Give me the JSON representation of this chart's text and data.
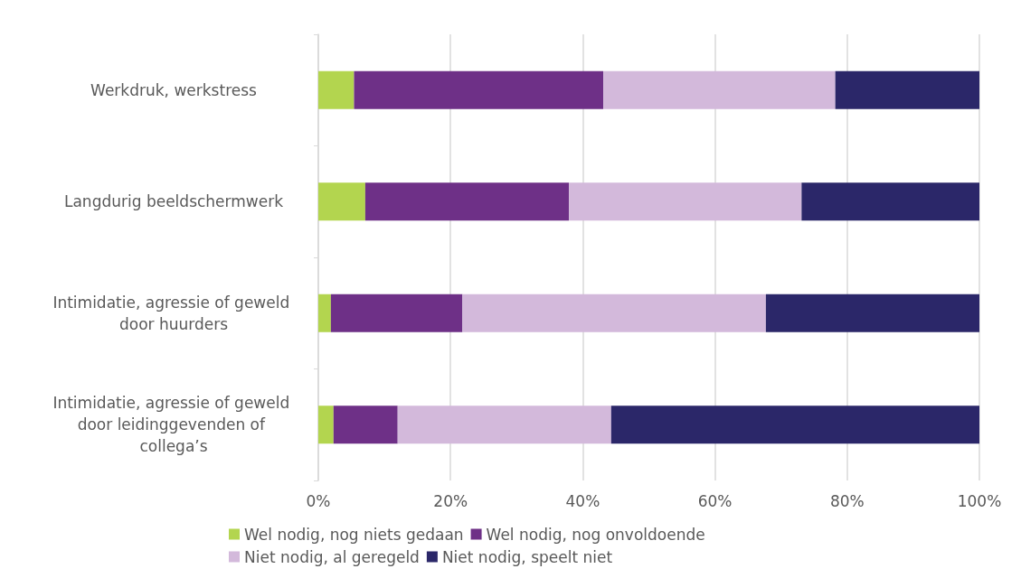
{
  "chart_data": {
    "type": "bar",
    "orientation": "horizontal",
    "stacked": true,
    "categories": [
      "Werkdruk, werkstress",
      "Langdurig beeldschermwerk",
      "Intimidatie, agressie of geweld door huurders",
      "Intimidatie, agressie of geweld door leidinggevenden of collega’s"
    ],
    "series": [
      {
        "name": "Wel nodig, nog niets gedaan",
        "color": "#b3d54f",
        "values": [
          5.4,
          7.1,
          1.9,
          2.3
        ]
      },
      {
        "name": "Wel nodig, nog onvoldoende",
        "color": "#6e3087",
        "values": [
          37.7,
          30.8,
          19.9,
          9.7
        ]
      },
      {
        "name": "Niet nodig, al geregeld",
        "color": "#d3b9db",
        "values": [
          35.1,
          35.2,
          45.9,
          32.3
        ]
      },
      {
        "name": "Niet nodig, speelt niet",
        "color": "#2b2769",
        "values": [
          21.8,
          26.9,
          32.3,
          55.7
        ]
      }
    ],
    "xlim": [
      0,
      100
    ],
    "xticks": [
      {
        "value": 0,
        "label": "0%"
      },
      {
        "value": 20,
        "label": "20%"
      },
      {
        "value": 40,
        "label": "40%"
      },
      {
        "value": 60,
        "label": "60%"
      },
      {
        "value": 80,
        "label": "80%"
      },
      {
        "value": 100,
        "label": "100%"
      }
    ],
    "grid": "x",
    "legend": "bottom"
  }
}
